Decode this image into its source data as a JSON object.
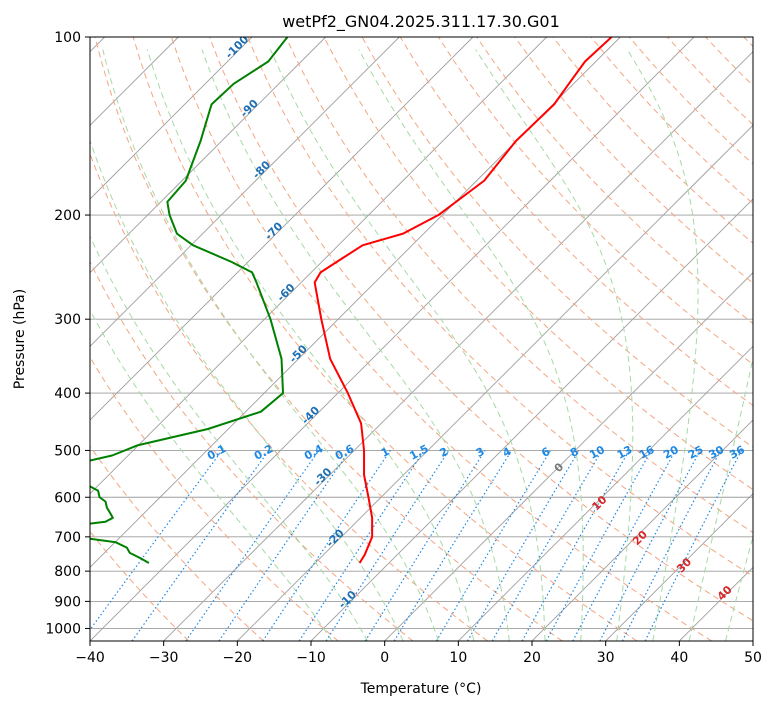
{
  "chart_data": {
    "type": "line",
    "title": "wetPf2_GN04.2025.311.17.30.G01",
    "xlabel": "Temperature (°C)",
    "ylabel": "Pressure (hPa)",
    "xlim": [
      -40,
      50
    ],
    "ylim": [
      1050,
      100
    ],
    "y_scale": "log",
    "grid": true,
    "x_ticks": [
      "−40",
      "−30",
      "−20",
      "−10",
      "0",
      "10",
      "20",
      "30",
      "40",
      "50"
    ],
    "y_ticks": [
      "100",
      "200",
      "300",
      "400",
      "500",
      "600",
      "700",
      "800",
      "900",
      "1000"
    ],
    "series": [
      {
        "role": "temperature",
        "color": "#ff0000",
        "points": [
          {
            "p": 100,
            "t": 30.8
          },
          {
            "p": 110,
            "t": 27.2
          },
          {
            "p": 120,
            "t": 25.0
          },
          {
            "p": 130,
            "t": 23.0
          },
          {
            "p": 150,
            "t": 17.8
          },
          {
            "p": 175,
            "t": 13.5
          },
          {
            "p": 200,
            "t": 7.3
          },
          {
            "p": 215,
            "t": 2.5
          },
          {
            "p": 225,
            "t": -3.0
          },
          {
            "p": 240,
            "t": -6.5
          },
          {
            "p": 250,
            "t": -8.7
          },
          {
            "p": 260,
            "t": -9.5
          },
          {
            "p": 300,
            "t": -8.6
          },
          {
            "p": 350,
            "t": -7.4
          },
          {
            "p": 400,
            "t": -5.0
          },
          {
            "p": 450,
            "t": -3.2
          },
          {
            "p": 500,
            "t": -2.8
          },
          {
            "p": 550,
            "t": -2.8
          },
          {
            "p": 600,
            "t": -2.2
          },
          {
            "p": 650,
            "t": -1.7
          },
          {
            "p": 700,
            "t": -1.7
          },
          {
            "p": 750,
            "t": -2.7
          },
          {
            "p": 775,
            "t": -3.4
          }
        ]
      },
      {
        "role": "dewpoint",
        "color": "#008000",
        "points": [
          {
            "p": 100,
            "t": -13.2
          },
          {
            "p": 110,
            "t": -15.8
          },
          {
            "p": 120,
            "t": -20.5
          },
          {
            "p": 130,
            "t": -23.5
          },
          {
            "p": 150,
            "t": -25.0
          },
          {
            "p": 175,
            "t": -27.0
          },
          {
            "p": 190,
            "t": -29.5
          },
          {
            "p": 200,
            "t": -29.2
          },
          {
            "p": 215,
            "t": -28.2
          },
          {
            "p": 225,
            "t": -26.0
          },
          {
            "p": 240,
            "t": -20.8
          },
          {
            "p": 250,
            "t": -18.0
          },
          {
            "p": 260,
            "t": -17.4
          },
          {
            "p": 300,
            "t": -15.5
          },
          {
            "p": 350,
            "t": -14.0
          },
          {
            "p": 400,
            "t": -13.8
          },
          {
            "p": 430,
            "t": -16.8
          },
          {
            "p": 460,
            "t": -24.0
          },
          {
            "p": 490,
            "t": -33.5
          },
          {
            "p": 510,
            "t": -37.0
          },
          {
            "p": 520,
            "t": -40.0
          }
        ]
      },
      {
        "role": "dewpoint-lower",
        "color": "#008000",
        "points": [
          {
            "p": 575,
            "t": -40.0
          },
          {
            "p": 585,
            "t": -38.9
          },
          {
            "p": 600,
            "t": -38.7
          },
          {
            "p": 610,
            "t": -37.9
          },
          {
            "p": 625,
            "t": -37.7
          },
          {
            "p": 640,
            "t": -37.2
          },
          {
            "p": 650,
            "t": -36.9
          },
          {
            "p": 660,
            "t": -37.9
          },
          {
            "p": 665,
            "t": -40.0
          }
        ]
      },
      {
        "role": "dewpoint-surface",
        "color": "#008000",
        "points": [
          {
            "p": 705,
            "t": -40.0
          },
          {
            "p": 715,
            "t": -36.5
          },
          {
            "p": 730,
            "t": -35.0
          },
          {
            "p": 745,
            "t": -34.6
          },
          {
            "p": 760,
            "t": -33.2
          },
          {
            "p": 775,
            "t": -32.0
          }
        ]
      }
    ],
    "dry_adiabat_labels": [
      "-100",
      "-90",
      "-80",
      "-70",
      "-60",
      "-50",
      "-40",
      "-30",
      "-20",
      "-10"
    ],
    "mixing_ratio_labels": [
      "0.1",
      "0.2",
      "0.4",
      "0.6",
      "1",
      "1.5",
      "2",
      "3",
      "4",
      "6",
      "8",
      "10",
      "13",
      "16",
      "20",
      "25",
      "30",
      "36"
    ],
    "moist_adiabat_labels": [
      "0",
      "10",
      "20",
      "30",
      "40"
    ],
    "colors": {
      "isotherm": "#9e9e9e",
      "isobar": "#9e9e9e",
      "dry_adiabat": "#f4a582",
      "moist_adiabat": "#a6d9a6",
      "mixing_ratio": "#1e88e5",
      "dry_adiabat_label": "#1f6fb4",
      "mixing_ratio_label": "#1e88e5",
      "moist_label_zero": "#777777",
      "moist_label": "#d62728"
    }
  }
}
